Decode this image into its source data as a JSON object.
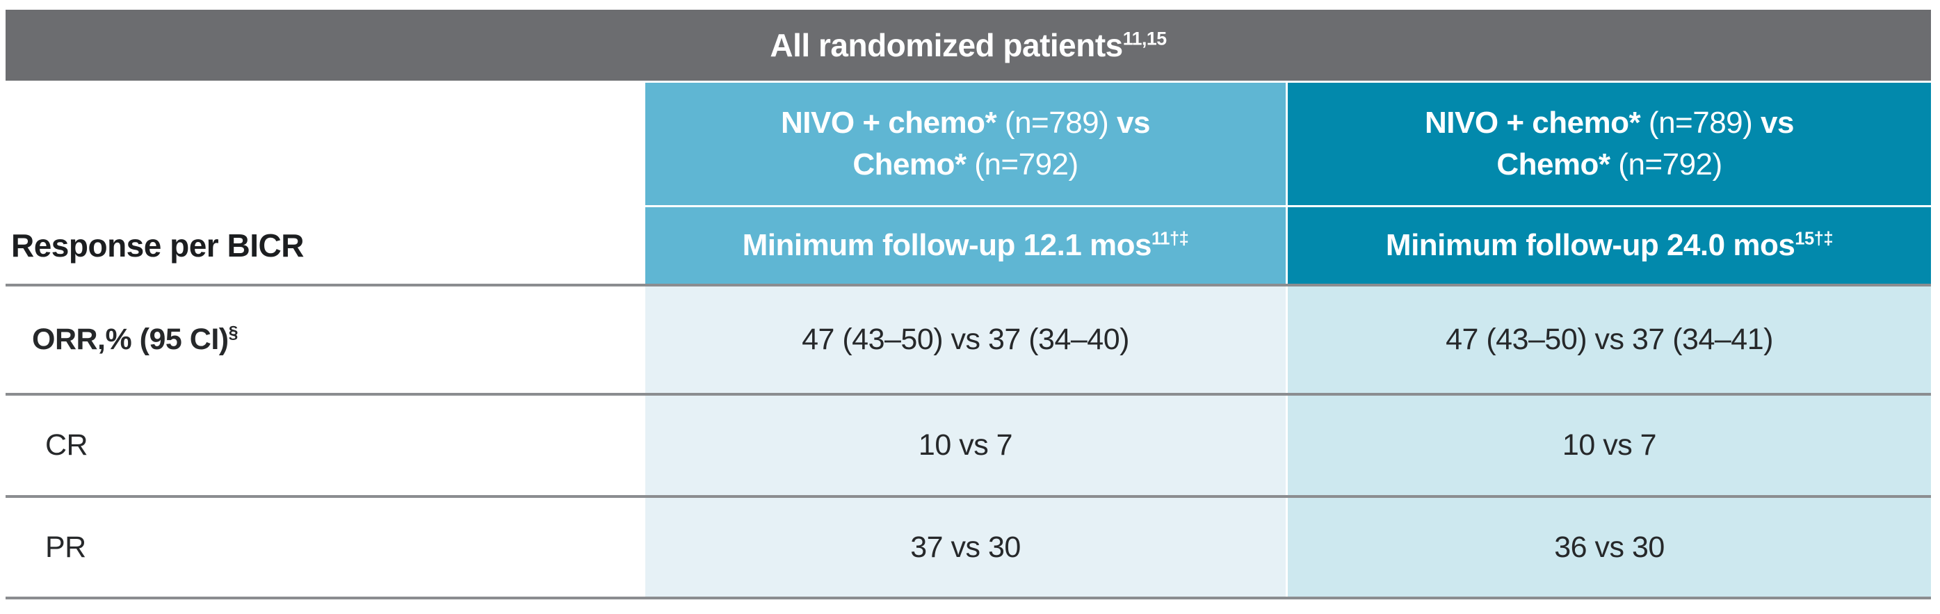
{
  "colors": {
    "title_bar_bg": "#6c6d70",
    "header_col1_bg": "#5fb6d3",
    "header_col2_bg": "#0289ac",
    "body_col1_bg": "#e6f1f6",
    "body_col2_bg": "#cde8ef",
    "row_divider": "#8b8d90",
    "header_text": "#ffffff",
    "body_text": "#26282a"
  },
  "table": {
    "title_rich": [
      {
        "text": "All randomized patients",
        "bold": true
      },
      {
        "text": "11,15",
        "bold": true,
        "sup": true
      }
    ],
    "column_groups": {
      "col1_rich": [
        {
          "text": "NIVO + chemo*",
          "bold": true
        },
        {
          "text": " (n=789) "
        },
        {
          "text": "vs",
          "bold": true
        },
        {
          "text": "\n"
        },
        {
          "text": "Chemo*",
          "bold": true
        },
        {
          "text": " (n=792)"
        }
      ],
      "col2_rich": [
        {
          "text": "NIVO + chemo*",
          "bold": true
        },
        {
          "text": " (n=789) "
        },
        {
          "text": "vs",
          "bold": true
        },
        {
          "text": "\n"
        },
        {
          "text": "Chemo*",
          "bold": true
        },
        {
          "text": " (n=792)"
        }
      ]
    },
    "subheaders": {
      "row_header_label": "Response per BICR",
      "col1_rich": [
        {
          "text": "Minimum follow-up 12.1 mos",
          "bold": true
        },
        {
          "text": "11†‡",
          "bold": true,
          "sup": true
        }
      ],
      "col2_rich": [
        {
          "text": "Minimum follow-up 24.0 mos",
          "bold": true
        },
        {
          "text": "15†‡",
          "bold": true,
          "sup": true
        }
      ]
    },
    "rows": {
      "orr": {
        "label_rich": [
          {
            "text": "ORR,% (95 CI)",
            "bold": true
          },
          {
            "text": "§",
            "bold": true,
            "sup": true
          }
        ],
        "values": [
          "47 (43–50) vs 37 (34–40)",
          "47 (43–50) vs 37 (34–41)"
        ]
      },
      "cr": {
        "label_rich": [
          {
            "text": "CR"
          }
        ],
        "values": [
          "10 vs 7",
          "10 vs 7"
        ]
      },
      "pr": {
        "label_rich": [
          {
            "text": "PR"
          }
        ],
        "values": [
          "37 vs 30",
          "36 vs 30"
        ]
      }
    }
  },
  "chart_data": {
    "type": "table",
    "title": "All randomized patients (refs 11,15)",
    "column_groups": [
      "NIVO + chemo* (n=789) vs Chemo* (n=792)",
      "NIVO + chemo* (n=789) vs Chemo* (n=792)"
    ],
    "columns": [
      "Minimum follow-up 12.1 mos (refs 11,†,‡)",
      "Minimum follow-up 24.0 mos (refs 15,†,‡)"
    ],
    "row_header": "Response per BICR",
    "rows": [
      {
        "label": "ORR,% (95 CI)§",
        "values": [
          "47 (43–50) vs 37 (34–40)",
          "47 (43–50) vs 37 (34–41)"
        ]
      },
      {
        "label": "CR",
        "values": [
          "10 vs 7",
          "10 vs 7"
        ]
      },
      {
        "label": "PR",
        "values": [
          "37 vs 30",
          "36 vs 30"
        ]
      }
    ]
  }
}
